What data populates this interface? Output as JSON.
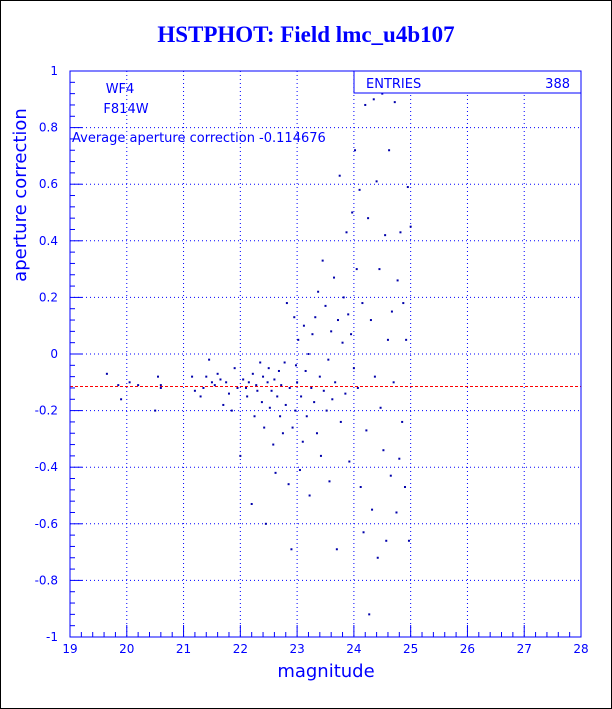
{
  "chart_data": {
    "type": "scatter",
    "title": "HSTPHOT: Field lmc_u4b107",
    "xlabel": "magnitude",
    "ylabel": "aperture correction",
    "xlim": [
      19,
      28
    ],
    "ylim": [
      -1,
      1
    ],
    "x_ticks": [
      "19",
      "20",
      "21",
      "22",
      "23",
      "24",
      "25",
      "26",
      "27",
      "28"
    ],
    "y_ticks": [
      "-1",
      "-0.8",
      "-0.6",
      "-0.4",
      "-0.2",
      "0",
      "0.2",
      "0.4",
      "0.6",
      "0.8",
      "1"
    ],
    "grid": true,
    "annotations": [
      "WF4",
      "F814W"
    ],
    "average_text": "Average aperture correction -0.114676",
    "average_value": -0.114676,
    "stats_box": {
      "label": "ENTRIES",
      "value": "388"
    },
    "colors": {
      "axes": "#0000ff",
      "points": "#0000aa",
      "average_line": "#ff0000"
    },
    "series": [
      {
        "points": [
          [
            19.65,
            -0.07
          ],
          [
            19.85,
            -0.11
          ],
          [
            19.9,
            -0.16
          ],
          [
            20.05,
            -0.1
          ],
          [
            20.2,
            -0.11
          ],
          [
            20.5,
            -0.2
          ],
          [
            20.55,
            -0.08
          ],
          [
            20.6,
            -0.11
          ],
          [
            20.6,
            -0.12
          ],
          [
            21.15,
            -0.08
          ],
          [
            21.2,
            -0.13
          ],
          [
            21.3,
            -0.15
          ],
          [
            21.35,
            -0.12
          ],
          [
            21.4,
            -0.08
          ],
          [
            21.45,
            -0.02
          ],
          [
            21.5,
            -0.1
          ],
          [
            21.55,
            -0.11
          ],
          [
            21.6,
            -0.07
          ],
          [
            21.65,
            -0.09
          ],
          [
            21.7,
            -0.18
          ],
          [
            21.75,
            -0.1
          ],
          [
            21.8,
            -0.14
          ],
          [
            21.85,
            -0.2
          ],
          [
            21.9,
            -0.05
          ],
          [
            21.95,
            -0.12
          ],
          [
            22.0,
            -0.36
          ],
          [
            22.05,
            -0.09
          ],
          [
            22.1,
            -0.12
          ],
          [
            22.12,
            -0.15
          ],
          [
            22.15,
            -0.1
          ],
          [
            22.2,
            -0.53
          ],
          [
            22.22,
            -0.07
          ],
          [
            22.25,
            -0.22
          ],
          [
            22.28,
            -0.11
          ],
          [
            22.3,
            -0.13
          ],
          [
            22.35,
            -0.03
          ],
          [
            22.38,
            -0.17
          ],
          [
            22.4,
            -0.08
          ],
          [
            22.42,
            -0.26
          ],
          [
            22.45,
            -0.6
          ],
          [
            22.48,
            -0.1
          ],
          [
            22.5,
            -0.05
          ],
          [
            22.52,
            -0.19
          ],
          [
            22.55,
            -0.13
          ],
          [
            22.58,
            -0.32
          ],
          [
            22.6,
            -0.09
          ],
          [
            22.62,
            -0.42
          ],
          [
            22.65,
            -0.15
          ],
          [
            22.68,
            -0.06
          ],
          [
            22.7,
            -0.22
          ],
          [
            22.72,
            -0.11
          ],
          [
            22.75,
            -0.28
          ],
          [
            22.78,
            -0.03
          ],
          [
            22.8,
            -0.18
          ],
          [
            22.82,
            0.18
          ],
          [
            22.85,
            -0.46
          ],
          [
            22.87,
            -0.12
          ],
          [
            22.9,
            -0.69
          ],
          [
            22.92,
            -0.26
          ],
          [
            22.95,
            0.13
          ],
          [
            22.97,
            -0.2
          ],
          [
            22.98,
            -0.04
          ],
          [
            23.0,
            -0.1
          ],
          [
            23.02,
            0.05
          ],
          [
            23.05,
            -0.41
          ],
          [
            23.07,
            -0.15
          ],
          [
            23.1,
            -0.31
          ],
          [
            23.12,
            0.1
          ],
          [
            23.15,
            -0.06
          ],
          [
            23.17,
            -0.22
          ],
          [
            23.2,
            0.0
          ],
          [
            23.22,
            -0.5
          ],
          [
            23.25,
            -0.12
          ],
          [
            23.27,
            0.07
          ],
          [
            23.3,
            -0.17
          ],
          [
            23.32,
            0.13
          ],
          [
            23.35,
            -0.28
          ],
          [
            23.37,
            0.22
          ],
          [
            23.4,
            -0.08
          ],
          [
            23.42,
            -0.36
          ],
          [
            23.45,
            0.33
          ],
          [
            23.47,
            -0.13
          ],
          [
            23.5,
            0.17
          ],
          [
            23.52,
            -0.2
          ],
          [
            23.55,
            -0.02
          ],
          [
            23.57,
            -0.45
          ],
          [
            23.6,
            0.08
          ],
          [
            23.62,
            -0.16
          ],
          [
            23.65,
            0.27
          ],
          [
            23.67,
            -0.1
          ],
          [
            23.7,
            -0.69
          ],
          [
            23.72,
            0.12
          ],
          [
            23.75,
            0.63
          ],
          [
            23.77,
            -0.24
          ],
          [
            23.8,
            0.04
          ],
          [
            23.82,
            0.2
          ],
          [
            23.85,
            -0.14
          ],
          [
            23.87,
            0.43
          ],
          [
            23.9,
            0.14
          ],
          [
            23.92,
            -0.38
          ],
          [
            23.95,
            0.07
          ],
          [
            23.97,
            0.5
          ],
          [
            24.0,
            -0.05
          ],
          [
            24.02,
            0.72
          ],
          [
            24.05,
            0.3
          ],
          [
            24.07,
            -0.12
          ],
          [
            24.1,
            0.58
          ],
          [
            24.12,
            -0.47
          ],
          [
            24.15,
            0.18
          ],
          [
            24.17,
            -0.63
          ],
          [
            24.2,
            0.88
          ],
          [
            24.22,
            -0.27
          ],
          [
            24.25,
            0.48
          ],
          [
            24.27,
            -0.92
          ],
          [
            24.3,
            0.12
          ],
          [
            24.32,
            -0.55
          ],
          [
            24.35,
            0.9
          ],
          [
            24.37,
            -0.08
          ],
          [
            24.4,
            0.61
          ],
          [
            24.42,
            -0.72
          ],
          [
            24.45,
            0.3
          ],
          [
            24.47,
            -0.19
          ],
          [
            24.5,
            0.92
          ],
          [
            24.52,
            -0.34
          ],
          [
            24.55,
            0.42
          ],
          [
            24.57,
            -0.66
          ],
          [
            24.6,
            0.05
          ],
          [
            24.62,
            0.72
          ],
          [
            24.65,
            -0.43
          ],
          [
            24.67,
            0.15
          ],
          [
            24.7,
            -0.1
          ],
          [
            24.72,
            0.89
          ],
          [
            24.75,
            -0.56
          ],
          [
            24.77,
            0.26
          ],
          [
            24.8,
            -0.37
          ],
          [
            24.82,
            0.43
          ],
          [
            24.85,
            -0.24
          ],
          [
            24.87,
            0.18
          ],
          [
            24.9,
            -0.47
          ],
          [
            24.92,
            0.05
          ],
          [
            24.95,
            0.59
          ],
          [
            24.97,
            -0.66
          ],
          [
            25.0,
            0.45
          ]
        ]
      }
    ]
  }
}
